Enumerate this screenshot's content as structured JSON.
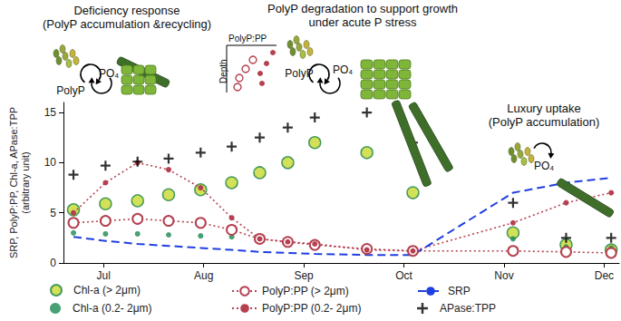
{
  "chart_data": {
    "type": "scatter",
    "ylabel": "SRP, PolyP:PP, Chl-a, APase:TPP\n(arbitrary unit)",
    "x": [
      6.7,
      7.02,
      7.34,
      7.65,
      7.97,
      8.28,
      8.56,
      8.84,
      9.11,
      9.63,
      10.09,
      11.09,
      11.62,
      12.07
    ],
    "xlim": [
      6.6,
      12.15
    ],
    "xticks": [
      {
        "value": 7,
        "label": "Jul"
      },
      {
        "value": 8,
        "label": "Aug"
      },
      {
        "value": 9,
        "label": "Sep"
      },
      {
        "value": 10,
        "label": "Oct"
      },
      {
        "value": 11,
        "label": "Nov"
      },
      {
        "value": 12,
        "label": "Dec"
      }
    ],
    "ylim": [
      0,
      16
    ],
    "yticks": [
      0,
      5,
      10,
      15
    ],
    "grid": false,
    "legend": "bottom",
    "annotations": [
      "Deficiency response\n(PolyP accumulation &recycling)",
      "PolyP degradation to support growth\nunder acute P stress",
      "Luxury uptake\n(PolyP accumulation)",
      "PolyP",
      "PO₄",
      "PolyP",
      "PO₄",
      "PO₄",
      "PolyP:PP",
      "Depth"
    ],
    "series": [
      {
        "name": "Chl-a (> 2μm)",
        "type": "scatter",
        "color": "#c8d92e",
        "marker": "circle",
        "line_style": "none",
        "values": [
          5.3,
          5.9,
          6.2,
          6.8,
          7.3,
          8.0,
          9.0,
          10.0,
          12.0,
          11.0,
          7.0,
          3.0,
          1.8,
          1.3
        ]
      },
      {
        "name": "Chl-a (0.2- 2μm)",
        "type": "scatter",
        "color": "#1a8a50",
        "marker": "dot",
        "line_style": "none",
        "values": [
          3.0,
          2.9,
          2.9,
          2.8,
          2.7,
          2.6,
          2.4,
          2.2,
          2.0,
          1.5,
          1.3,
          2.4,
          1.6,
          1.5
        ]
      },
      {
        "name": "PolyP:PP (> 2μm)",
        "type": "line",
        "color": "#b5404f",
        "marker": "open_circle",
        "line_style": "dotted",
        "values": [
          4.0,
          4.2,
          4.4,
          4.2,
          4.0,
          3.3,
          2.4,
          2.1,
          1.8,
          1.4,
          1.2,
          1.2,
          1.1,
          1.0
        ]
      },
      {
        "name": "PolyP:PP (0.2- 2μm)",
        "type": "line",
        "color": "#b5404f",
        "marker": "dot",
        "line_style": "dotted",
        "values": [
          5.0,
          8.0,
          10.0,
          9.3,
          7.5,
          4.5,
          2.4,
          2.1,
          1.9,
          1.3,
          1.2,
          4.0,
          6.0,
          7.0
        ]
      },
      {
        "name": "SRP",
        "type": "line",
        "color": "#1f3fe0",
        "marker": "none",
        "line_style": "dashed",
        "values": [
          2.6,
          2.2,
          1.9,
          1.7,
          1.5,
          1.3,
          1.1,
          1.0,
          0.9,
          0.8,
          0.8,
          7.0,
          8.0,
          8.5
        ]
      },
      {
        "name": "APase:TPP",
        "type": "scatter",
        "color": "#000000",
        "marker": "plus",
        "line_style": "none",
        "values": [
          8.8,
          9.7,
          10.1,
          10.4,
          11.0,
          11.6,
          12.5,
          13.5,
          14.5,
          15.0,
          12.0,
          6.0,
          2.5,
          2.5
        ]
      }
    ]
  }
}
